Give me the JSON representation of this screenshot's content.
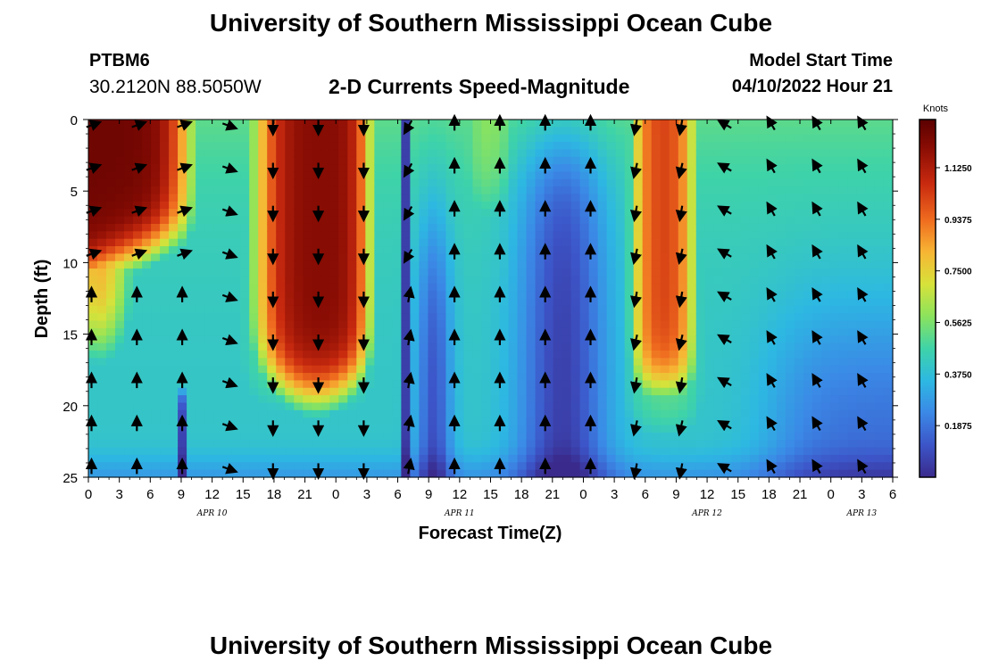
{
  "header": {
    "title": "University of Southern Mississippi Ocean Cube",
    "station": "PTBM6",
    "coords": "30.2120N  88.5050W",
    "subtitle": "2-D Currents Speed-Magnitude",
    "model_start_label": "Model Start Time",
    "model_start_value": "04/10/2022 Hour 21"
  },
  "footer": {
    "title": "University of Southern Mississippi Ocean Cube"
  },
  "colors": {
    "scale": [
      "#3a2a8c",
      "#3c55c8",
      "#3b88e6",
      "#2db8e2",
      "#3fd3a8",
      "#8be35d",
      "#d7e23a",
      "#f7b534",
      "#ef6b1f",
      "#c92a0f",
      "#8a0d04",
      "#5a0000"
    ]
  },
  "chart_data": {
    "type": "heatmap",
    "title": "2-D Currents Speed-Magnitude",
    "xlabel": "Forecast Time(Z)",
    "ylabel": "Depth (ft)",
    "x_ticks": [
      "0",
      "3",
      "6",
      "9",
      "12",
      "15",
      "18",
      "21",
      "0",
      "3",
      "6",
      "9",
      "12",
      "15",
      "18",
      "21",
      "0",
      "3",
      "6",
      "9",
      "12",
      "15",
      "18",
      "21",
      "0",
      "3",
      "6"
    ],
    "x_range_hours": [
      0,
      78
    ],
    "y_ticks": [
      "0",
      "5",
      "10",
      "15",
      "20",
      "25"
    ],
    "y_range_ft": [
      0,
      25
    ],
    "date_labels": [
      {
        "text": "APR 10",
        "hour": 12
      },
      {
        "text": "APR 11",
        "hour": 36
      },
      {
        "text": "APR 12",
        "hour": 60
      },
      {
        "text": "APR 13",
        "hour": 75
      }
    ],
    "colorbar": {
      "label": "Knots",
      "ticks": [
        "1.1250",
        "0.9375",
        "0.7500",
        "0.5625",
        "0.3750",
        "0.1875"
      ],
      "tick_values": [
        1.125,
        0.9375,
        0.75,
        0.5625,
        0.375,
        0.1875
      ],
      "range": [
        0.0,
        1.3
      ]
    },
    "speed_regions": [
      {
        "note": "upper-left jet",
        "hours": [
          0,
          10
        ],
        "depth_ft": [
          0,
          10
        ],
        "knots": 1.2
      },
      {
        "note": "second jet",
        "hours": [
          16,
          27
        ],
        "depth_ft": [
          0,
          17
        ],
        "knots": 1.15
      },
      {
        "note": "third jet",
        "hours": [
          52,
          59
        ],
        "depth_ft": [
          0,
          20
        ],
        "knots": 1.0
      },
      {
        "note": "low-speed streak",
        "hours": [
          30.5,
          31.5
        ],
        "depth_ft": [
          0,
          25
        ],
        "knots": 0.05
      },
      {
        "note": "low-speed pocket",
        "hours": [
          8,
          10
        ],
        "depth_ft": [
          18,
          25
        ],
        "knots": 0.02
      }
    ]
  }
}
